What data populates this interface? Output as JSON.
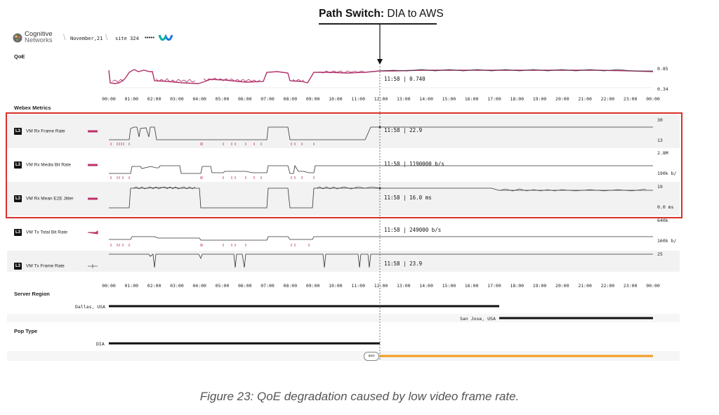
{
  "annotation": {
    "title_bold": "Path Switch:",
    "title_rest": " DIA to AWS"
  },
  "header": {
    "logo_line1": "Cognitive",
    "logo_line2": "Networks",
    "date": "November,21",
    "site": "site 324",
    "dots": "•••••",
    "brand_icon": "webex-icon"
  },
  "qoe": {
    "section": "QoE",
    "value_readout": "11:58 | 0.740",
    "ymax": "0.85",
    "ymin": "0.34"
  },
  "time_axis": [
    "00:00",
    "01:00",
    "02:00",
    "03:00",
    "04:00",
    "05:00",
    "06:00",
    "07:00",
    "08:00",
    "09:00",
    "10:00",
    "11:00",
    "12:00",
    "13:00",
    "14:00",
    "15:00",
    "16:00",
    "17:00",
    "18:00",
    "19:00",
    "20:00",
    "21:00",
    "22:00",
    "23:00",
    "00:00"
  ],
  "webex": {
    "section": "Webex Metrics",
    "rows": [
      {
        "badge": "L3",
        "label": "VM Rx Frame Rate",
        "readout": "11:58 | 22.9",
        "ymax": "30",
        "ymin": "13"
      },
      {
        "badge": "L3",
        "label": "VM Rx Media Bit Rate",
        "readout": "11:58 | 1190000 b/s",
        "ymax": "2.8M",
        "ymin": "190k b/"
      },
      {
        "badge": "L3",
        "label": "VM Rx Mean E2E Jitter",
        "readout": "11:58 | 16.0 ms",
        "ymax": "19",
        "ymin": "0.0 ms"
      },
      {
        "badge": "L3",
        "label": "VM Tx Total Bit Rate",
        "readout": "11:58 | 249000 b/s",
        "ymax": "640k",
        "ymin": "160k b/"
      },
      {
        "badge": "L3",
        "label": "VM Tx Frame Rate",
        "readout": "11:58 | 23.9",
        "ymax": "25",
        "ymin": ""
      }
    ]
  },
  "server_region": {
    "section": "Server Region",
    "entries": [
      {
        "label": "Dallas, USA",
        "start": "00:00",
        "end": "17:15"
      },
      {
        "label": "San Jose, USA",
        "start": "17:15",
        "end": "24:00"
      }
    ]
  },
  "pop_type": {
    "section": "Pop Type",
    "entries": [
      {
        "label": "DIA",
        "start": "00:00",
        "end": "11:58",
        "color": "#111111"
      },
      {
        "label": "aws",
        "start": "11:58",
        "end": "24:00",
        "color": "#f29b1d"
      }
    ]
  },
  "colors": {
    "qoe_line": "#b0306a",
    "highlight": "#d9302a",
    "aws": "#f29b1d",
    "marker": "#c0306a"
  },
  "caption": "Figure 23: QoE degradation caused by low video frame rate."
}
